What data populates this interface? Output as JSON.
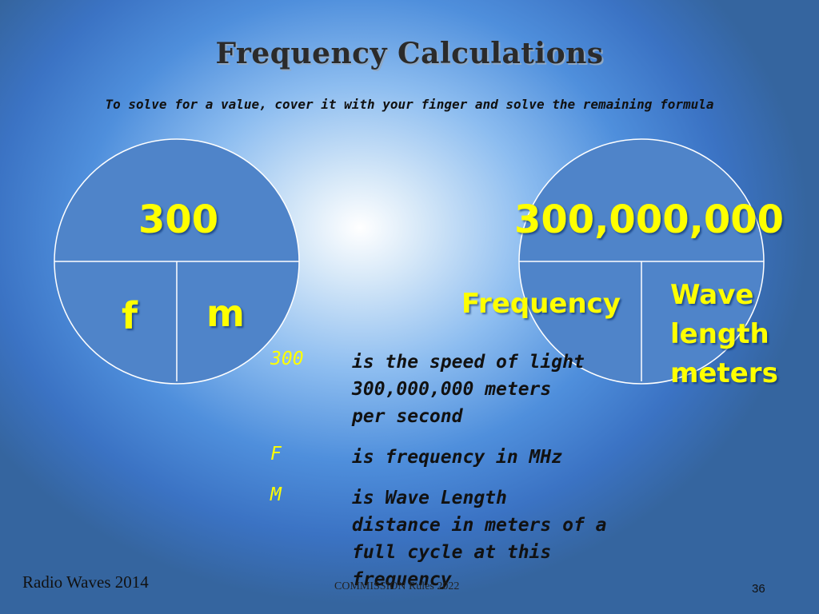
{
  "slide": {
    "title": "Frequency Calculations",
    "subtitle": "To solve for a value, cover it with your finger and solve the remaining formula"
  },
  "left_circle": {
    "top_value": "300",
    "bottom_left": "f",
    "bottom_right": "m"
  },
  "right_circle": {
    "top_value": "300,000,000",
    "bottom_left": "Frequency",
    "bottom_right_lines": [
      "Wave",
      "length",
      "meters"
    ]
  },
  "legend": [
    {
      "symbol": "300",
      "lines": [
        "is the speed of light",
        "300,000,000 meters",
        "per second"
      ]
    },
    {
      "symbol": "F",
      "lines": [
        "is  frequency in MHz"
      ]
    },
    {
      "symbol": "M",
      "lines": [
        "is  Wave Length",
        "distance in meters of a",
        "full cycle at this",
        "frequency"
      ]
    }
  ],
  "footer": {
    "left": "Radio Waves 2014",
    "center": "COMMISSION Rules 2022",
    "page": "36"
  },
  "colors": {
    "accent_yellow": "#ffff00",
    "circle_fill": "#4f84c9",
    "circle_stroke": "#ffffff"
  }
}
